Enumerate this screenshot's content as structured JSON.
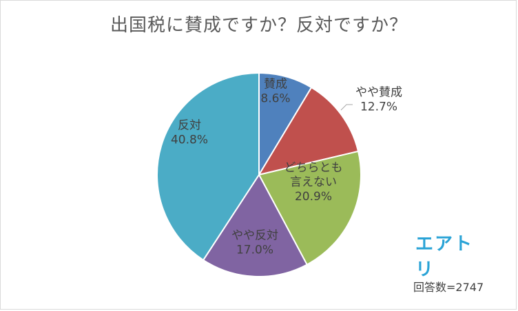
{
  "title": "出国税に賛成ですか？反対ですか？",
  "brand": "エアトリ",
  "respondents": "回答数=2747",
  "chart_data": {
    "type": "pie",
    "title": "出国税に賛成ですか？反対ですか？",
    "slices": [
      {
        "label": "賛成",
        "value": 8.6,
        "display": "8.6%",
        "color": "#4f81bd"
      },
      {
        "label": "やや賛成",
        "value": 12.7,
        "display": "12.7%",
        "color": "#c0504d"
      },
      {
        "label": "どちらとも言えない",
        "label_lines": [
          "どちらとも",
          "言えない"
        ],
        "value": 20.9,
        "display": "20.9%",
        "color": "#9bbb59"
      },
      {
        "label": "やや反対",
        "value": 17.0,
        "display": "17.0%",
        "color": "#8064a2"
      },
      {
        "label": "反対",
        "value": 40.8,
        "display": "40.8%",
        "color": "#4bacc6"
      }
    ],
    "start": "12 o'clock, clockwise"
  }
}
